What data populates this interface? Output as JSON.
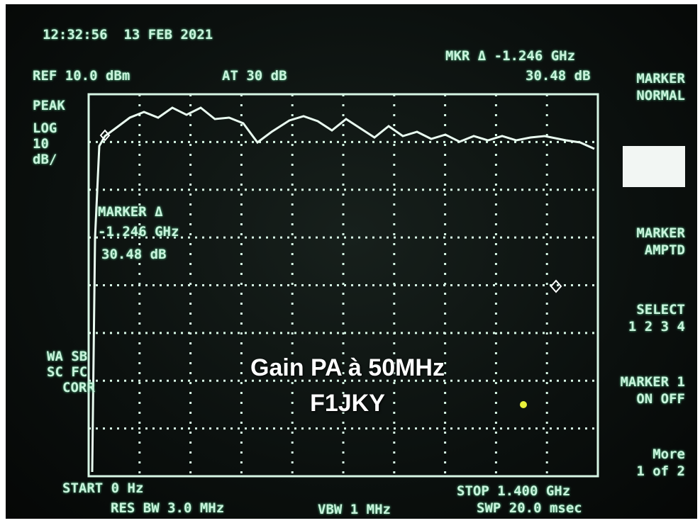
{
  "header": {
    "timestamp": "12:32:56  13 FEB 2021",
    "reference": "REF 10.0 dBm",
    "attenuation": "AT 30 dB",
    "marker_delta": "MKR Δ -1.246 GHz",
    "marker_level": "30.48 dB"
  },
  "scale": {
    "mode": "PEAK",
    "type": "LOG",
    "step": "10",
    "unit": "dB/"
  },
  "marker_readout": {
    "title": "MARKER Δ",
    "frequency": "-1.246 GHz",
    "level": "30.48 dB"
  },
  "status": {
    "line1": "WA SB",
    "line2": "SC FC",
    "line3": "CORR"
  },
  "softkeys": [
    {
      "line1": "MARKER",
      "line2": "NORMAL"
    },
    {
      "line1": "MARKER",
      "line2": "AMPTD"
    },
    {
      "line1": "SELECT",
      "line2": "1 2 3 4"
    },
    {
      "line1": "MARKER 1",
      "line2": "ON OFF"
    },
    {
      "line1": "More",
      "line2": "1 of 2"
    }
  ],
  "footer": {
    "start": "START 0 Hz",
    "stop": "STOP 1.400 GHz",
    "rbw": "RES BW 3.0 MHz",
    "vbw": "VBW 1 MHz",
    "sweep": "SWP 20.0 msec"
  },
  "overlay": {
    "line1": "Gain PA à 50MHz",
    "line2": "F1JKY"
  }
}
